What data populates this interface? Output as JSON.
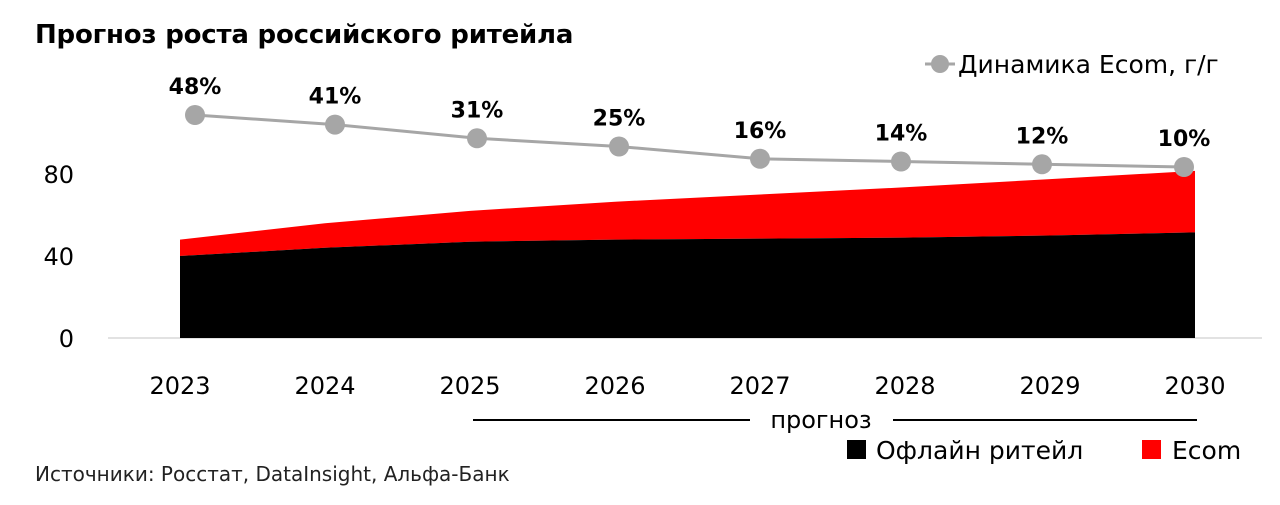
{
  "title": "Прогноз роста российского ритейла",
  "source": "Источники: Росстат, DataInsight, Альфа-Банк",
  "forecast_label": "прогноз",
  "chart_data": {
    "type": "area",
    "title": "Прогноз роста российского ритейла",
    "categories": [
      "2023",
      "2024",
      "2025",
      "2026",
      "2027",
      "2028",
      "2029",
      "2030"
    ],
    "ylim": [
      0,
      100
    ],
    "yticks": [
      "0",
      "40",
      "80"
    ],
    "ytick_values": [
      0,
      40,
      80
    ],
    "grid": false,
    "stacked": true,
    "series": [
      {
        "name": "Офлайн ритейл",
        "type": "area",
        "color": "#000000",
        "values": [
          40,
          44,
          47,
          48,
          48.5,
          49,
          50,
          51.5
        ]
      },
      {
        "name": "Ecom",
        "type": "area",
        "color": "#ff0000",
        "values": [
          8,
          12,
          15,
          18.5,
          21.5,
          24.5,
          27.5,
          30
        ]
      },
      {
        "name": "Динамика Ecom, г/г",
        "type": "line",
        "color": "#a6a6a6",
        "values": [
          48,
          41,
          31,
          25,
          16,
          14,
          12,
          10
        ],
        "labels": [
          "48%",
          "41%",
          "31%",
          "25%",
          "16%",
          "14%",
          "12%",
          "10%"
        ]
      }
    ],
    "legend": {
      "line_label": "Динамика Ecom, г/г",
      "line_placement": "top-right",
      "area_placement": "bottom-right"
    }
  },
  "colors": {
    "offline": "#000000",
    "ecom": "#ff0000",
    "dynamics": "#a6a6a6"
  }
}
